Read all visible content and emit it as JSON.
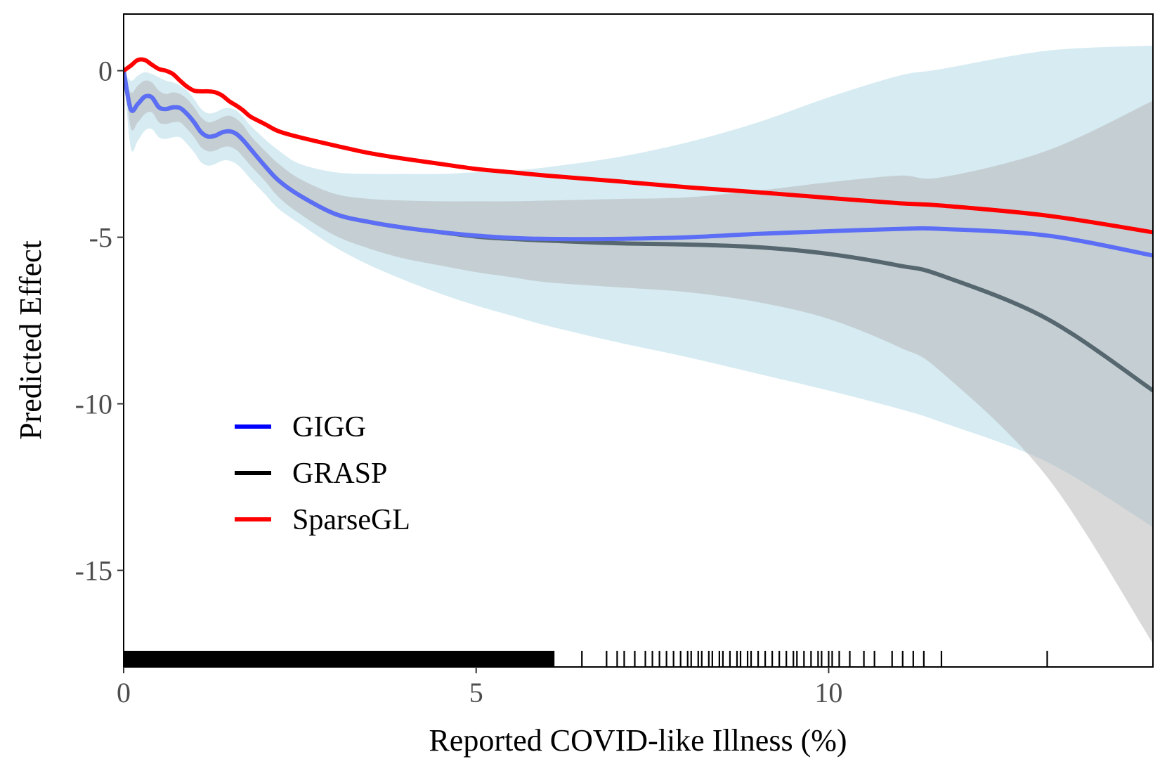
{
  "chart_data": {
    "type": "line",
    "title": "",
    "xlabel": "Reported COVID-like Illness (%)",
    "ylabel": "Predicted Effect",
    "xlim": [
      0,
      14.6
    ],
    "ylim": [
      -17.9,
      1.7
    ],
    "grid": false,
    "x_ticks": [
      {
        "value": 0,
        "label": "0"
      },
      {
        "value": 5,
        "label": "5"
      },
      {
        "value": 10,
        "label": "10"
      }
    ],
    "y_ticks": [
      {
        "value": 0,
        "label": "0"
      },
      {
        "value": -5,
        "label": "-5"
      },
      {
        "value": -10,
        "label": "-10"
      },
      {
        "value": -15,
        "label": "-15"
      }
    ],
    "legend_position": "bottom-left",
    "series": [
      {
        "name": "GIGG",
        "color": "#5b6ef5",
        "legend_color": "#0000ff",
        "x": [
          0,
          0.1,
          0.2,
          0.3,
          0.4,
          0.5,
          0.6,
          0.7,
          0.8,
          0.9,
          1.0,
          1.1,
          1.2,
          1.3,
          1.4,
          1.5,
          1.6,
          1.7,
          1.8,
          2.0,
          2.2,
          2.5,
          3.0,
          3.5,
          4.0,
          4.5,
          5.0,
          5.5,
          6.0,
          7.0,
          8.0,
          9.0,
          10.0,
          11.0,
          11.6,
          13.1,
          14.6
        ],
        "values": [
          0,
          -1.15,
          -1.0,
          -0.78,
          -0.8,
          -1.1,
          -1.15,
          -1.1,
          -1.12,
          -1.3,
          -1.55,
          -1.85,
          -1.98,
          -1.95,
          -1.85,
          -1.82,
          -1.9,
          -2.1,
          -2.35,
          -2.85,
          -3.3,
          -3.75,
          -4.3,
          -4.55,
          -4.72,
          -4.85,
          -4.95,
          -5.02,
          -5.05,
          -5.05,
          -5.0,
          -4.9,
          -4.82,
          -4.75,
          -4.75,
          -4.95,
          -5.55
        ]
      },
      {
        "name": "GRASP",
        "color": "#56676f",
        "legend_color": "#000000",
        "x": [
          0,
          0.1,
          0.2,
          0.3,
          0.4,
          0.5,
          0.6,
          0.7,
          0.8,
          0.9,
          1.0,
          1.1,
          1.2,
          1.3,
          1.4,
          1.5,
          1.6,
          1.7,
          1.8,
          2.0,
          2.2,
          2.5,
          3.0,
          3.5,
          4.0,
          4.5,
          5.0,
          5.5,
          6.0,
          7.0,
          8.0,
          9.0,
          10.0,
          11.0,
          11.6,
          13.1,
          14.6
        ],
        "values": [
          0,
          -1.15,
          -1.0,
          -0.78,
          -0.8,
          -1.1,
          -1.15,
          -1.1,
          -1.12,
          -1.3,
          -1.55,
          -1.85,
          -1.98,
          -1.95,
          -1.85,
          -1.82,
          -1.9,
          -2.1,
          -2.35,
          -2.85,
          -3.3,
          -3.75,
          -4.3,
          -4.55,
          -4.72,
          -4.85,
          -4.98,
          -5.05,
          -5.1,
          -5.18,
          -5.22,
          -5.3,
          -5.5,
          -5.85,
          -6.15,
          -7.45,
          -9.6
        ]
      },
      {
        "name": "SparseGL",
        "color": "#ff0000",
        "legend_color": "#ff0000",
        "x": [
          0,
          0.1,
          0.2,
          0.3,
          0.4,
          0.5,
          0.6,
          0.7,
          0.8,
          0.9,
          1.0,
          1.1,
          1.2,
          1.3,
          1.4,
          1.5,
          1.6,
          1.7,
          1.8,
          2.0,
          2.2,
          2.5,
          3.0,
          3.5,
          4.0,
          4.5,
          5.0,
          5.5,
          6.0,
          7.0,
          8.0,
          9.0,
          10.0,
          11.0,
          11.6,
          13.1,
          14.6
        ],
        "values": [
          0,
          0.15,
          0.32,
          0.32,
          0.18,
          0.05,
          0.0,
          -0.1,
          -0.3,
          -0.48,
          -0.6,
          -0.62,
          -0.62,
          -0.65,
          -0.75,
          -0.92,
          -1.05,
          -1.2,
          -1.38,
          -1.6,
          -1.82,
          -2.0,
          -2.25,
          -2.48,
          -2.65,
          -2.8,
          -2.95,
          -3.05,
          -3.15,
          -3.32,
          -3.5,
          -3.65,
          -3.82,
          -3.98,
          -4.05,
          -4.35,
          -4.85
        ]
      }
    ],
    "ribbons": [
      {
        "name": "GIGG interval",
        "color": "#add8e6",
        "x": [
          0,
          0.1,
          0.2,
          0.3,
          0.4,
          0.5,
          0.6,
          0.7,
          0.8,
          0.9,
          1.0,
          1.1,
          1.2,
          1.3,
          1.4,
          1.5,
          1.6,
          1.7,
          1.8,
          2.0,
          2.2,
          2.5,
          3.0,
          3.5,
          4.0,
          4.5,
          5.0,
          5.5,
          6.0,
          7.0,
          8.0,
          9.0,
          10.0,
          11.0,
          11.6,
          13.1,
          14.6
        ],
        "upper": [
          0,
          -0.3,
          -0.15,
          -0.05,
          -0.1,
          -0.2,
          -0.3,
          -0.35,
          -0.45,
          -0.6,
          -0.85,
          -1.15,
          -1.28,
          -1.25,
          -1.15,
          -1.12,
          -1.2,
          -1.4,
          -1.65,
          -2.05,
          -2.4,
          -2.8,
          -3.05,
          -3.1,
          -3.1,
          -3.1,
          -3.05,
          -3.0,
          -2.9,
          -2.6,
          -2.15,
          -1.55,
          -0.8,
          -0.15,
          0.05,
          0.6,
          0.75
        ],
        "lower": [
          0,
          -2.3,
          -2.1,
          -1.8,
          -1.75,
          -2.0,
          -2.05,
          -2.0,
          -2.0,
          -2.2,
          -2.45,
          -2.75,
          -2.85,
          -2.8,
          -2.7,
          -2.7,
          -2.8,
          -3.0,
          -3.25,
          -3.7,
          -4.15,
          -4.6,
          -5.3,
          -5.85,
          -6.3,
          -6.7,
          -7.05,
          -7.35,
          -7.65,
          -8.15,
          -8.6,
          -9.1,
          -9.6,
          -10.15,
          -10.55,
          -11.75,
          -13.7
        ]
      },
      {
        "name": "GRASP interval",
        "color": "#b3b3b3",
        "x": [
          0,
          0.1,
          0.2,
          0.3,
          0.4,
          0.5,
          0.6,
          0.7,
          0.8,
          0.9,
          1.0,
          1.1,
          1.2,
          1.3,
          1.4,
          1.5,
          1.6,
          1.7,
          1.8,
          2.0,
          2.2,
          2.5,
          3.0,
          3.5,
          4.0,
          4.5,
          5.0,
          5.5,
          6.0,
          7.0,
          8.0,
          9.0,
          10.0,
          11.0,
          11.6,
          13.1,
          14.6
        ],
        "upper": [
          0,
          -0.65,
          -0.45,
          -0.3,
          -0.35,
          -0.6,
          -0.7,
          -0.65,
          -0.7,
          -0.85,
          -1.1,
          -1.4,
          -1.55,
          -1.5,
          -1.4,
          -1.35,
          -1.45,
          -1.65,
          -1.95,
          -2.4,
          -2.8,
          -3.25,
          -3.7,
          -3.85,
          -3.9,
          -3.92,
          -3.92,
          -3.92,
          -3.9,
          -3.85,
          -3.8,
          -3.6,
          -3.35,
          -3.15,
          -3.2,
          -2.4,
          -0.9
        ],
        "lower": [
          0,
          -1.7,
          -1.55,
          -1.3,
          -1.25,
          -1.55,
          -1.6,
          -1.55,
          -1.55,
          -1.75,
          -2.0,
          -2.3,
          -2.42,
          -2.4,
          -2.3,
          -2.28,
          -2.38,
          -2.6,
          -2.85,
          -3.3,
          -3.8,
          -4.3,
          -4.95,
          -5.35,
          -5.65,
          -5.85,
          -6.05,
          -6.2,
          -6.35,
          -6.5,
          -6.65,
          -6.95,
          -7.45,
          -8.3,
          -9.05,
          -12.2,
          -17.2
        ]
      }
    ],
    "rug_x": [
      6.1,
      6.5,
      6.85,
      7.0,
      7.1,
      7.25,
      7.4,
      7.5,
      7.6,
      7.7,
      7.8,
      7.9,
      8.0,
      8.05,
      8.15,
      8.2,
      8.3,
      8.35,
      8.45,
      8.5,
      8.6,
      8.7,
      8.75,
      8.85,
      8.9,
      9.0,
      9.1,
      9.2,
      9.3,
      9.4,
      9.5,
      9.55,
      9.65,
      9.75,
      9.85,
      9.9,
      10.0,
      10.05,
      10.15,
      10.3,
      10.5,
      10.65,
      10.9,
      11.05,
      11.2,
      11.35,
      11.6,
      13.1
    ]
  }
}
